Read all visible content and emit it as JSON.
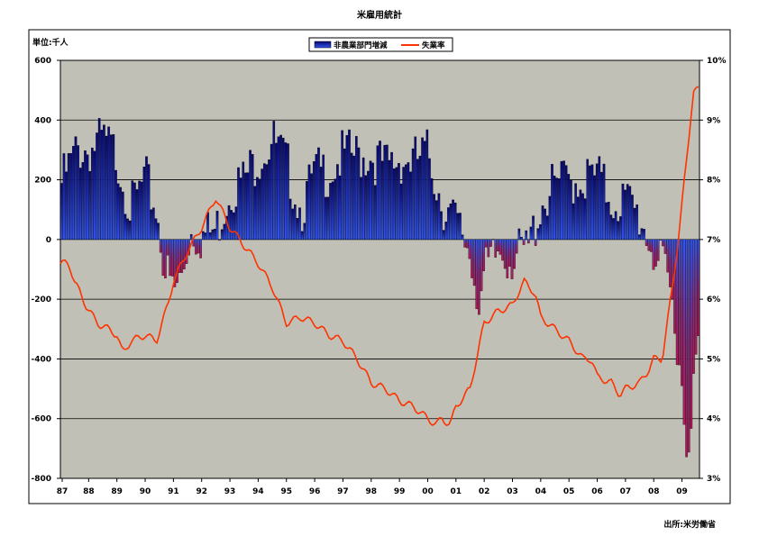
{
  "title": "米雇用統計",
  "source": "出所:米労働省",
  "chart_data": {
    "type": "bar+line",
    "unit_label": "単位:千人",
    "legend": [
      "非農業部門増減",
      "失業率"
    ],
    "legend_position": "top",
    "grid": true,
    "colors": {
      "plot_bg": "#c0c0b6",
      "bar_top": "#06066f",
      "bar_bottom": "#3355ee",
      "neg_bar": "#b01a58",
      "line": "#ff3300"
    },
    "x_tick_labels": [
      "87",
      "88",
      "89",
      "90",
      "91",
      "92",
      "93",
      "94",
      "95",
      "96",
      "97",
      "98",
      "99",
      "00",
      "01",
      "02",
      "03",
      "04",
      "05",
      "06",
      "07",
      "08",
      "09"
    ],
    "left_axis": {
      "label": "単位:千人",
      "ticks": [
        "600",
        "400",
        "200",
        "0",
        "-200",
        "-400",
        "-600",
        "-800"
      ],
      "ylim": [
        -800,
        600
      ]
    },
    "right_axis": {
      "ticks": [
        "10%",
        "9%",
        "8%",
        "7%",
        "6%",
        "5%",
        "4%",
        "3%"
      ],
      "ylim": [
        3,
        10
      ]
    },
    "payroll_keypoints": [
      [
        1987.0,
        180
      ],
      [
        1987.6,
        300
      ],
      [
        1988.0,
        300
      ],
      [
        1988.5,
        330
      ],
      [
        1989.0,
        280
      ],
      [
        1989.5,
        100
      ],
      [
        1990.0,
        200
      ],
      [
        1990.4,
        100
      ],
      [
        1990.7,
        -100
      ],
      [
        1991.0,
        -180
      ],
      [
        1991.3,
        -120
      ],
      [
        1991.6,
        30
      ],
      [
        1992.0,
        10
      ],
      [
        1992.5,
        30
      ],
      [
        1993.0,
        170
      ],
      [
        1993.5,
        200
      ],
      [
        1994.0,
        280
      ],
      [
        1994.5,
        330
      ],
      [
        1995.0,
        250
      ],
      [
        1995.5,
        100
      ],
      [
        1996.0,
        220
      ],
      [
        1996.5,
        230
      ],
      [
        1997.0,
        280
      ],
      [
        1997.5,
        280
      ],
      [
        1998.0,
        280
      ],
      [
        1998.5,
        240
      ],
      [
        1999.0,
        270
      ],
      [
        1999.5,
        260
      ],
      [
        2000.0,
        290
      ],
      [
        2000.5,
        120
      ],
      [
        2001.0,
        50
      ],
      [
        2001.4,
        -20
      ],
      [
        2001.8,
        -200
      ],
      [
        2002.0,
        -120
      ],
      [
        2002.5,
        -40
      ],
      [
        2003.0,
        -60
      ],
      [
        2003.5,
        -40
      ],
      [
        2004.0,
        120
      ],
      [
        2004.5,
        180
      ],
      [
        2005.0,
        200
      ],
      [
        2005.5,
        200
      ],
      [
        2006.0,
        210
      ],
      [
        2006.5,
        130
      ],
      [
        2007.0,
        130
      ],
      [
        2007.5,
        70
      ],
      [
        2008.0,
        -50
      ],
      [
        2008.5,
        -150
      ],
      [
        2008.9,
        -400
      ],
      [
        2009.1,
        -700
      ],
      [
        2009.3,
        -560
      ],
      [
        2009.45,
        -450
      ],
      [
        2009.55,
        -350
      ]
    ],
    "unemployment_keypoints": [
      [
        1987.0,
        6.6
      ],
      [
        1987.3,
        6.6
      ],
      [
        1987.5,
        6.3
      ],
      [
        1987.9,
        5.9
      ],
      [
        1988.3,
        5.6
      ],
      [
        1988.7,
        5.5
      ],
      [
        1989.0,
        5.4
      ],
      [
        1989.2,
        5.1
      ],
      [
        1989.5,
        5.3
      ],
      [
        1990.0,
        5.4
      ],
      [
        1990.4,
        5.3
      ],
      [
        1990.8,
        5.9
      ],
      [
        1991.0,
        6.3
      ],
      [
        1991.5,
        6.8
      ],
      [
        1992.0,
        7.2
      ],
      [
        1992.4,
        7.6
      ],
      [
        1992.5,
        7.7
      ],
      [
        1993.0,
        7.2
      ],
      [
        1993.5,
        6.9
      ],
      [
        1994.0,
        6.6
      ],
      [
        1994.5,
        6.2
      ],
      [
        1995.0,
        5.6
      ],
      [
        1995.5,
        5.7
      ],
      [
        1996.0,
        5.6
      ],
      [
        1996.5,
        5.4
      ],
      [
        1997.0,
        5.3
      ],
      [
        1997.5,
        5.0
      ],
      [
        1998.0,
        4.6
      ],
      [
        1998.5,
        4.5
      ],
      [
        1999.0,
        4.3
      ],
      [
        1999.5,
        4.2
      ],
      [
        2000.0,
        4.0
      ],
      [
        2000.3,
        3.9
      ],
      [
        2000.5,
        4.0
      ],
      [
        2000.8,
        3.9
      ],
      [
        2001.0,
        4.2
      ],
      [
        2001.5,
        4.5
      ],
      [
        2002.0,
        5.6
      ],
      [
        2002.5,
        5.8
      ],
      [
        2003.0,
        5.9
      ],
      [
        2003.4,
        6.3
      ],
      [
        2003.8,
        6.1
      ],
      [
        2004.0,
        5.7
      ],
      [
        2004.5,
        5.5
      ],
      [
        2005.0,
        5.3
      ],
      [
        2005.5,
        5.0
      ],
      [
        2005.8,
        5.0
      ],
      [
        2006.0,
        4.7
      ],
      [
        2006.5,
        4.6
      ],
      [
        2006.8,
        4.4
      ],
      [
        2007.0,
        4.5
      ],
      [
        2007.5,
        4.6
      ],
      [
        2007.8,
        4.8
      ],
      [
        2008.0,
        5.0
      ],
      [
        2008.3,
        5.0
      ],
      [
        2008.6,
        6.0
      ],
      [
        2008.8,
        6.7
      ],
      [
        2009.0,
        7.6
      ],
      [
        2009.2,
        8.5
      ],
      [
        2009.4,
        9.5
      ],
      [
        2009.5,
        9.5
      ]
    ]
  }
}
